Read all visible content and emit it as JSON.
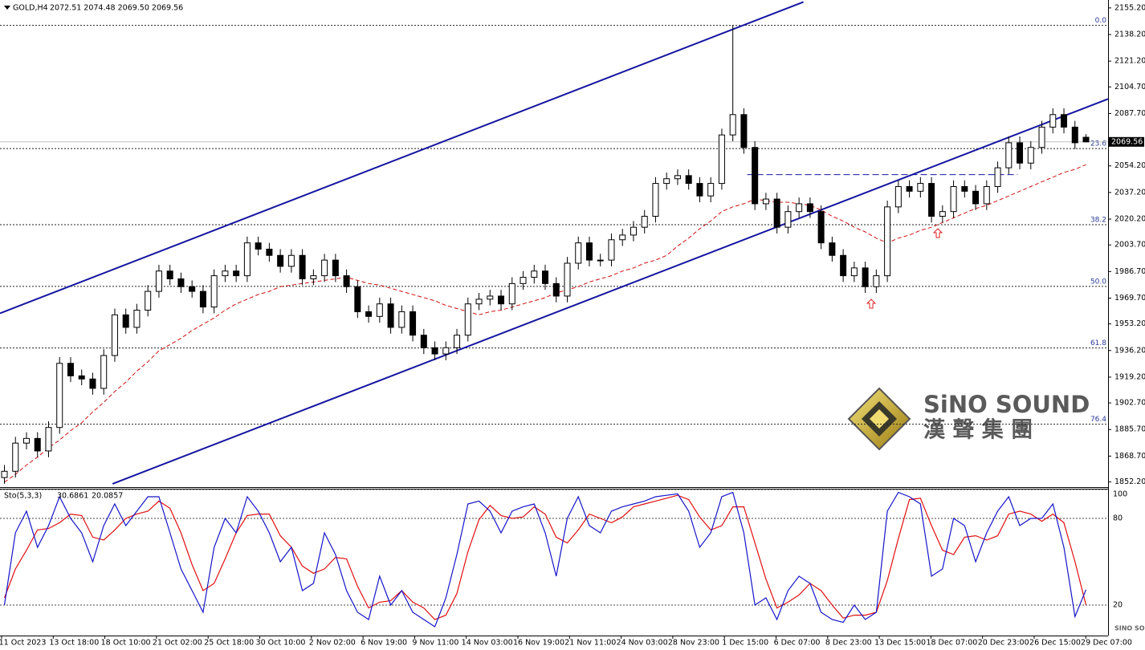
{
  "header": {
    "symbol": "GOLD,H4",
    "ohlc": "2072.51 2074.48 2069.50 2069.56"
  },
  "chart_data": {
    "type": "candlestick",
    "open": [
      1855,
      1859,
      1877,
      1880,
      1872,
      1887,
      1928,
      1920,
      1918,
      1912,
      1933,
      1959,
      1951,
      1962,
      1974,
      1987,
      1982,
      1977,
      1974,
      1964,
      1984,
      1987,
      1984,
      2005,
      2001,
      1997,
      1990,
      1997,
      1982,
      1984,
      1994,
      1984,
      1977,
      1961,
      1958,
      1966,
      1951,
      1961,
      1946,
      1938,
      1934,
      1938,
      1946,
      1966,
      1969,
      1971,
      1966,
      1979,
      1983,
      1987,
      1979,
      1971,
      1992,
      2005,
      1994,
      1994,
      2007,
      2010,
      2015,
      2022,
      2043,
      2046,
      2048,
      2043,
      2035,
      2043,
      2074,
      2087,
      2066,
      2030,
      2033,
      2015,
      2025,
      2030,
      2025,
      2005,
      1997,
      1984,
      1989,
      1977,
      1984,
      2028,
      2041,
      2038,
      2043,
      2022,
      2025,
      2041,
      2038,
      2030,
      2041,
      2053,
      2069,
      2056,
      2066,
      2079,
      2087,
      2079,
      2072.51
    ],
    "high": [
      1863,
      1881,
      1884,
      1884,
      1891,
      1932,
      1932,
      1924,
      1922,
      1937,
      1963,
      1963,
      1966,
      1978,
      1991,
      1991,
      1986,
      1981,
      1978,
      1988,
      1991,
      1991,
      2009,
      2009,
      2005,
      2001,
      2001,
      2001,
      1988,
      1998,
      1998,
      1988,
      1981,
      1965,
      1970,
      1970,
      1965,
      1965,
      1950,
      1942,
      1942,
      1950,
      1970,
      1973,
      1975,
      1975,
      1983,
      1987,
      1991,
      1991,
      1983,
      1996,
      2009,
      2009,
      1998,
      2011,
      2014,
      2019,
      2026,
      2047,
      2050,
      2052,
      2052,
      2047,
      2047,
      2078,
      2144,
      2091,
      2070,
      2037,
      2037,
      2029,
      2034,
      2034,
      2029,
      2009,
      2001,
      1993,
      1993,
      1988,
      2032,
      2045,
      2045,
      2047,
      2047,
      2029,
      2045,
      2045,
      2042,
      2045,
      2057,
      2073,
      2073,
      2070,
      2083,
      2091,
      2091,
      2083,
      2074.48
    ],
    "low": [
      1851,
      1855,
      1873,
      1868,
      1868,
      1883,
      1916,
      1914,
      1908,
      1908,
      1929,
      1947,
      1947,
      1958,
      1970,
      1978,
      1973,
      1970,
      1960,
      1960,
      1980,
      1980,
      1980,
      1997,
      1993,
      1986,
      1986,
      1978,
      1978,
      1980,
      1980,
      1973,
      1957,
      1954,
      1954,
      1947,
      1947,
      1942,
      1934,
      1930,
      1930,
      1934,
      1942,
      1962,
      1965,
      1962,
      1962,
      1975,
      1979,
      1975,
      1967,
      1967,
      1988,
      1990,
      1990,
      1990,
      2003,
      2006,
      2011,
      2018,
      2039,
      2042,
      2039,
      2031,
      2031,
      2039,
      2070,
      2062,
      2026,
      2026,
      2011,
      2011,
      2021,
      2021,
      2001,
      1993,
      1980,
      1980,
      1973,
      1973,
      1980,
      2024,
      2034,
      2034,
      2018,
      2018,
      2021,
      2034,
      2026,
      2026,
      2037,
      2049,
      2052,
      2052,
      2062,
      2075,
      2075,
      2065,
      2069.5
    ],
    "close": [
      1859,
      1877,
      1880,
      1872,
      1887,
      1928,
      1920,
      1918,
      1912,
      1933,
      1959,
      1951,
      1962,
      1974,
      1987,
      1982,
      1977,
      1974,
      1964,
      1984,
      1987,
      1984,
      2005,
      2001,
      1997,
      1990,
      1997,
      1982,
      1984,
      1994,
      1984,
      1977,
      1961,
      1958,
      1966,
      1951,
      1961,
      1946,
      1938,
      1934,
      1938,
      1946,
      1966,
      1969,
      1971,
      1966,
      1979,
      1983,
      1987,
      1979,
      1971,
      1992,
      2005,
      1994,
      1994,
      2007,
      2010,
      2015,
      2022,
      2043,
      2046,
      2048,
      2043,
      2035,
      2043,
      2074,
      2087,
      2066,
      2030,
      2033,
      2015,
      2025,
      2030,
      2025,
      2005,
      1997,
      1984,
      1989,
      1977,
      1984,
      2028,
      2041,
      2038,
      2043,
      2022,
      2025,
      2041,
      2038,
      2030,
      2041,
      2053,
      2069,
      2056,
      2066,
      2079,
      2087,
      2079,
      2069,
      2069.56
    ],
    "xlim": [
      -0.4,
      100
    ],
    "ylim": [
      1849.4,
      2158.2
    ],
    "yticks": [
      {
        "value": 2155.2,
        "label": "2155.20"
      },
      {
        "value": 2138.2,
        "label": "2138.20"
      },
      {
        "value": 2121.2,
        "label": "2121.20"
      },
      {
        "value": 2104.7,
        "label": "2104.70"
      },
      {
        "value": 2087.7,
        "label": "2087.70"
      },
      {
        "value": 2054.2,
        "label": "2054.20"
      },
      {
        "value": 2037.2,
        "label": "2037.20"
      },
      {
        "value": 2020.2,
        "label": "2020.20"
      },
      {
        "value": 2003.7,
        "label": "2003.70"
      },
      {
        "value": 1986.7,
        "label": "1986.70"
      },
      {
        "value": 1969.7,
        "label": "1969.70"
      },
      {
        "value": 1953.2,
        "label": "1953.20"
      },
      {
        "value": 1936.2,
        "label": "1936.20"
      },
      {
        "value": 1919.2,
        "label": "1919.20"
      },
      {
        "value": 1902.7,
        "label": "1902.70"
      },
      {
        "value": 1885.7,
        "label": "1885.70"
      },
      {
        "value": 1868.7,
        "label": "1868.70"
      },
      {
        "value": 1852.2,
        "label": "1852.20"
      }
    ],
    "x_labels": [
      "11 Oct 2023",
      "13 Oct 18:00",
      "18 Oct 10:00",
      "21 Oct 02:00",
      "25 Oct 18:00",
      "30 Oct 10:00",
      "2 Nov 02:00",
      "6 Nov 19:00",
      "9 Nov 11:00",
      "14 Nov 03:00",
      "16 Nov 19:00",
      "21 Nov 11:00",
      "24 Nov 03:00",
      "28 Nov 23:00",
      "1 Dec 15:00",
      "6 Dec 07:00",
      "8 Dec 23:00",
      "13 Dec 15:00",
      "18 Dec 07:00",
      "20 Dec 23:00",
      "26 Dec 15:00",
      "29 Dec 07:00"
    ],
    "last_price": 2069.56,
    "moving_average": {
      "color": "#d01010",
      "values": [
        1852,
        1857,
        1863,
        1868,
        1874,
        1879,
        1885,
        1890,
        1897,
        1903,
        1910,
        1916,
        1923,
        1929,
        1936,
        1940,
        1944,
        1949,
        1953,
        1957,
        1962,
        1966,
        1969,
        1972,
        1974,
        1977,
        1978,
        1979,
        1980,
        1981,
        1982,
        1983,
        1981,
        1979,
        1978,
        1976,
        1974,
        1972,
        1970,
        1968,
        1965,
        1963,
        1961,
        1959,
        1961,
        1962,
        1964,
        1966,
        1968,
        1970,
        1973,
        1975,
        1977,
        1980,
        1982,
        1984,
        1987,
        1989,
        1992,
        1994,
        1997,
        2003,
        2008,
        2014,
        2019,
        2025,
        2028,
        2030,
        2033,
        2032,
        2031,
        2031,
        2030,
        2029,
        2026,
        2022,
        2019,
        2015,
        2012,
        2008,
        2005,
        2008,
        2010,
        2013,
        2015,
        2018,
        2021,
        2024,
        2027,
        2029,
        2032,
        2035,
        2038,
        2041,
        2044,
        2047,
        2050,
        2052,
        2055
      ]
    },
    "fibonacci": [
      {
        "label": "0.0",
        "value": 2144
      },
      {
        "label": "23.6",
        "value": 2065.3
      },
      {
        "label": "38.2",
        "value": 2016.6
      },
      {
        "label": "50.0",
        "value": 1977.2
      },
      {
        "label": "61.8",
        "value": 1937.8
      },
      {
        "label": "76.4",
        "value": 1889.1
      }
    ],
    "trendlines": [
      {
        "color": "#1414a0",
        "dashed": false,
        "x": [
          -0.4,
          72.4
        ],
        "y": [
          1960,
          2159
        ]
      },
      {
        "color": "#1414a0",
        "dashed": false,
        "x": [
          9.8,
          100
        ],
        "y": [
          1851,
          2097
        ]
      },
      {
        "color": "#1414a0",
        "dashed": true,
        "x": [
          67.3,
          91.8
        ],
        "y": [
          2048.6,
          2048.6
        ]
      }
    ],
    "stochastic": {
      "name": "Sto(5,3,3)",
      "ylim": [
        0,
        100
      ],
      "yticks": [
        100,
        80,
        20
      ],
      "k": {
        "color": "#1515c8",
        "values": [
          20,
          70,
          85,
          60,
          75,
          95,
          80,
          70,
          50,
          75,
          90,
          75,
          85,
          95,
          95,
          70,
          45,
          30,
          15,
          60,
          80,
          70,
          95,
          85,
          70,
          50,
          60,
          30,
          35,
          70,
          55,
          30,
          15,
          10,
          40,
          20,
          30,
          15,
          10,
          5,
          25,
          55,
          90,
          92,
          85,
          70,
          85,
          88,
          90,
          70,
          40,
          80,
          95,
          75,
          70,
          85,
          88,
          90,
          92,
          95,
          96,
          97,
          85,
          60,
          70,
          95,
          98,
          70,
          20,
          25,
          10,
          30,
          40,
          35,
          15,
          10,
          8,
          20,
          10,
          15,
          85,
          98,
          95,
          90,
          40,
          45,
          80,
          75,
          50,
          70,
          85,
          95,
          75,
          80,
          80,
          90,
          60,
          12,
          30.6861
        ]
      },
      "d": {
        "color": "#e01010",
        "values": [
          25,
          45,
          58,
          72,
          73,
          77,
          83,
          82,
          67,
          65,
          72,
          80,
          83,
          85,
          92,
          87,
          70,
          48,
          30,
          35,
          52,
          70,
          82,
          83,
          83,
          68,
          60,
          47,
          42,
          45,
          53,
          52,
          33,
          18,
          22,
          23,
          30,
          22,
          18,
          10,
          13,
          28,
          57,
          79,
          89,
          82,
          80,
          81,
          88,
          83,
          67,
          63,
          72,
          83,
          80,
          77,
          81,
          88,
          90,
          92,
          94,
          96,
          93,
          81,
          72,
          75,
          88,
          88,
          63,
          38,
          18,
          22,
          27,
          35,
          30,
          20,
          11,
          13,
          13,
          15,
          37,
          66,
          93,
          94,
          75,
          58,
          55,
          67,
          68,
          65,
          68,
          83,
          85,
          83,
          78,
          83,
          77,
          50,
          20.0857
        ]
      }
    }
  },
  "watermark": {
    "brand": "SiNO SOUND",
    "chinese": "漢 聲 集 團",
    "small": "SINO SOUND"
  }
}
